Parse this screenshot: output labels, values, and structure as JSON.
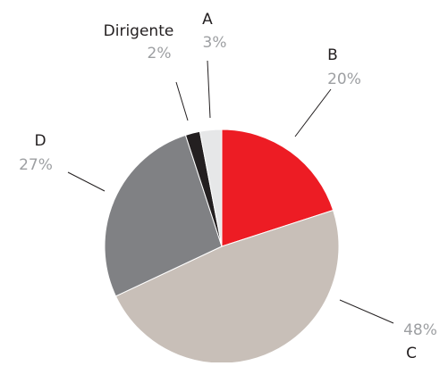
{
  "chart_data": {
    "type": "pie",
    "categories": [
      "B",
      "C",
      "D",
      "Dirigente",
      "A"
    ],
    "values": [
      20,
      48,
      27,
      2,
      3
    ],
    "value_labels": [
      "20%",
      "48%",
      "27%",
      "2%",
      "3%"
    ],
    "colors": [
      "#ed1c24",
      "#c8bfb8",
      "#808184",
      "#231f20",
      "#e6e7e8"
    ]
  }
}
